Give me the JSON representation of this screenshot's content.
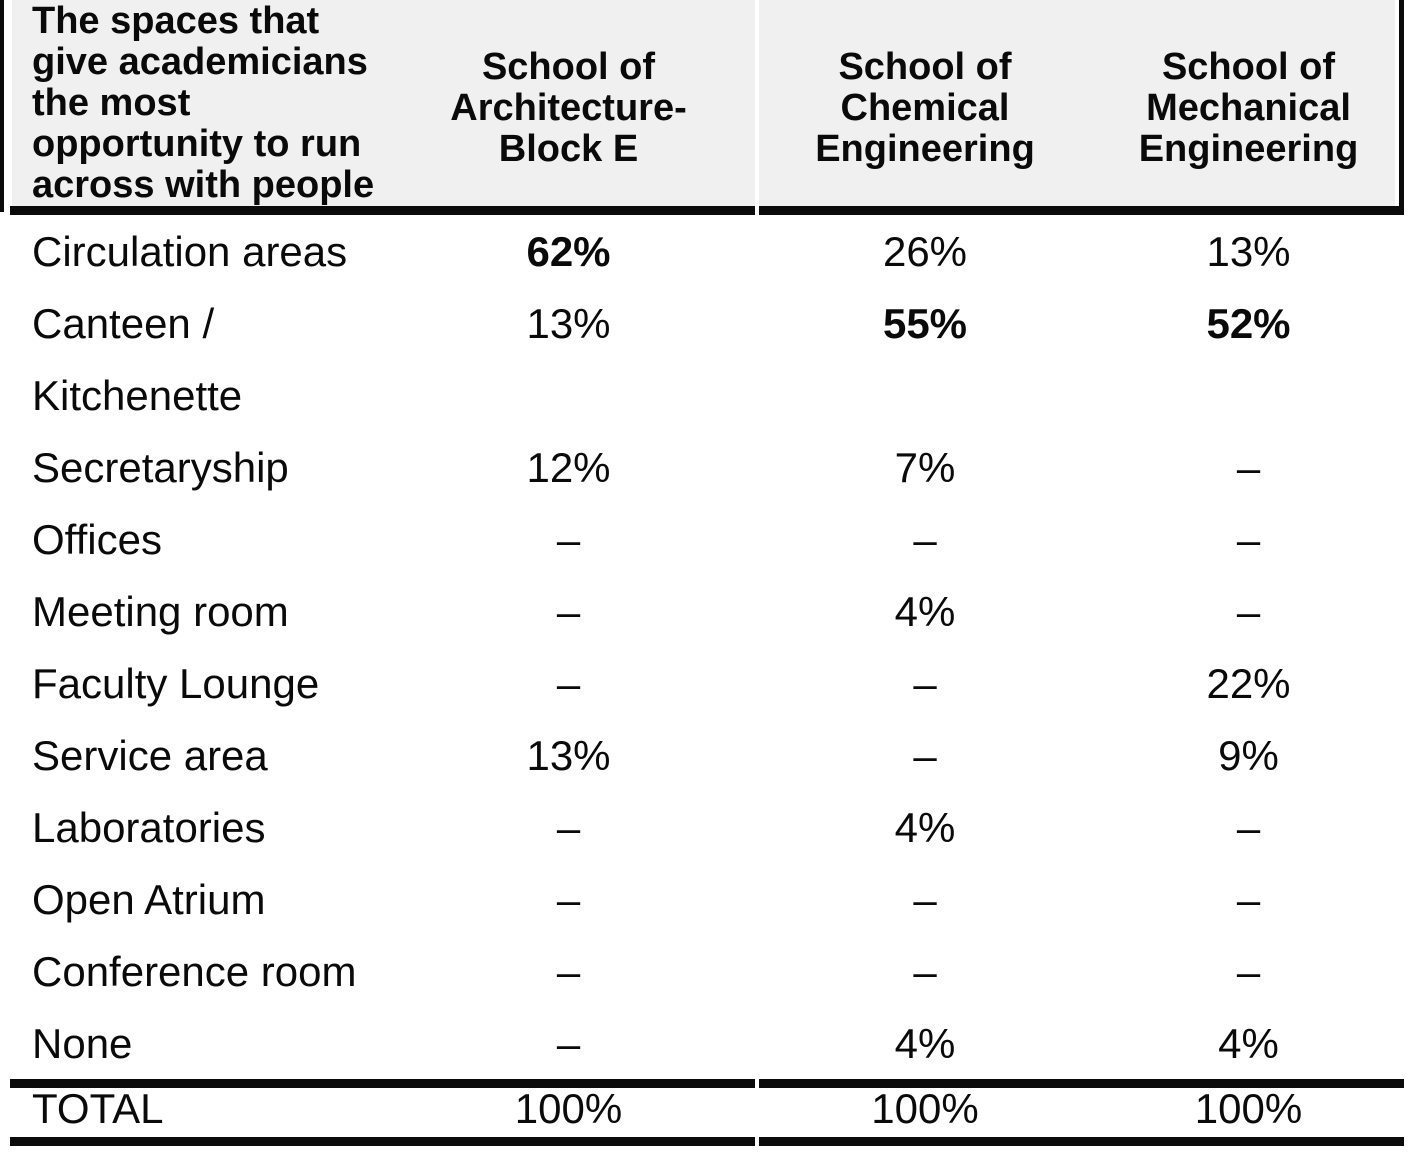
{
  "table": {
    "header": {
      "row_label": "The spaces that\ngive academicians\nthe most\nopportunity to run\nacross with people",
      "columns": [
        "School of\nArchitecture-\nBlock E",
        "School of\nChemical\nEngineering",
        "School of\nMechanical\nEngineering"
      ]
    },
    "rows": [
      {
        "label": "Circulation areas",
        "cells": [
          {
            "text": "62%",
            "bold": true
          },
          {
            "text": "26%",
            "bold": false
          },
          {
            "text": "13%",
            "bold": false
          }
        ]
      },
      {
        "label": "Canteen /",
        "cells": [
          {
            "text": "13%",
            "bold": false
          },
          {
            "text": "55%",
            "bold": true
          },
          {
            "text": "52%",
            "bold": true
          }
        ]
      },
      {
        "label": "Kitchenette",
        "cells": [
          {
            "text": "",
            "bold": false
          },
          {
            "text": "",
            "bold": false
          },
          {
            "text": "",
            "bold": false
          }
        ]
      },
      {
        "label": "Secretaryship",
        "cells": [
          {
            "text": "12%",
            "bold": false
          },
          {
            "text": "7%",
            "bold": false
          },
          {
            "text": "–",
            "bold": false
          }
        ]
      },
      {
        "label": "Offices",
        "cells": [
          {
            "text": "–",
            "bold": false
          },
          {
            "text": "–",
            "bold": false
          },
          {
            "text": "–",
            "bold": false
          }
        ]
      },
      {
        "label": "Meeting room",
        "cells": [
          {
            "text": "–",
            "bold": false
          },
          {
            "text": "4%",
            "bold": false
          },
          {
            "text": "–",
            "bold": false
          }
        ]
      },
      {
        "label": "Faculty Lounge",
        "cells": [
          {
            "text": "–",
            "bold": false
          },
          {
            "text": "–",
            "bold": false
          },
          {
            "text": "22%",
            "bold": false
          }
        ]
      },
      {
        "label": "Service area",
        "cells": [
          {
            "text": "13%",
            "bold": false
          },
          {
            "text": "–",
            "bold": false
          },
          {
            "text": "9%",
            "bold": false
          }
        ]
      },
      {
        "label": "Laboratories",
        "cells": [
          {
            "text": "–",
            "bold": false
          },
          {
            "text": "4%",
            "bold": false
          },
          {
            "text": "–",
            "bold": false
          }
        ]
      },
      {
        "label": "Open Atrium",
        "cells": [
          {
            "text": "–",
            "bold": false
          },
          {
            "text": "–",
            "bold": false
          },
          {
            "text": "–",
            "bold": false
          }
        ]
      },
      {
        "label": "Conference room",
        "cells": [
          {
            "text": "–",
            "bold": false
          },
          {
            "text": "–",
            "bold": false
          },
          {
            "text": "–",
            "bold": false
          }
        ]
      },
      {
        "label": "None",
        "cells": [
          {
            "text": "–",
            "bold": false
          },
          {
            "text": "4%",
            "bold": false
          },
          {
            "text": "4%",
            "bold": false
          }
        ]
      }
    ],
    "total": {
      "label": "TOTAL",
      "cells": [
        "100%",
        "100%",
        "100%"
      ]
    },
    "colors": {
      "header_bg": "#f0f0f0",
      "rule": "#0b0b0b",
      "text": "#0a0a0a"
    }
  }
}
